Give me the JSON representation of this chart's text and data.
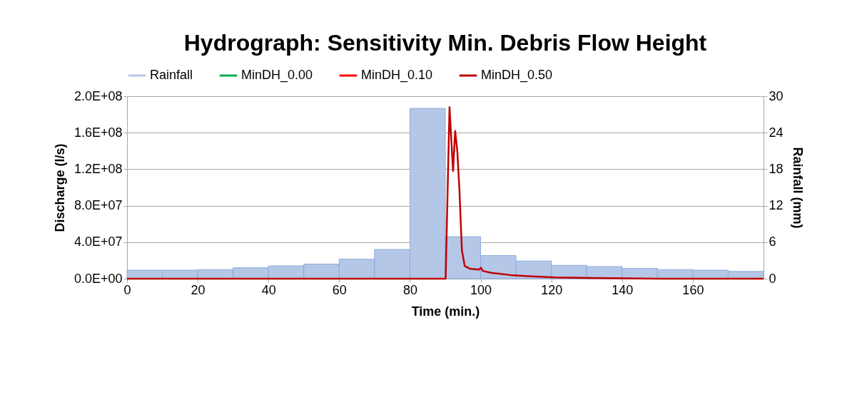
{
  "chart_data": {
    "type": "line",
    "title": "Hydrograph: Sensitivity Min. Debris Flow Height",
    "xlabel": "Time (min.)",
    "ylabel": "Discharge (l/s)",
    "y2label": "Rainfall (mm)",
    "series": [
      {
        "name": "Rainfall",
        "type": "bar",
        "axis": "y2",
        "color": "#b4c7e7",
        "x": [
          5,
          15,
          25,
          35,
          45,
          55,
          65,
          75,
          85,
          95,
          105,
          115,
          125,
          135,
          145,
          155,
          165,
          175
        ],
        "values": [
          1.4,
          1.4,
          1.5,
          1.8,
          2.1,
          2.4,
          3.2,
          4.8,
          28.0,
          6.9,
          3.8,
          2.9,
          2.2,
          2.0,
          1.7,
          1.5,
          1.4,
          1.2
        ]
      },
      {
        "name": "MinDH_0.00",
        "color": "#00b050"
      },
      {
        "name": "MinDH_0.10",
        "color": "#ff0000"
      },
      {
        "name": "MinDH_0.50",
        "color": "#c00000",
        "x": [
          0,
          90.1,
          91.2,
          92.2,
          92.8,
          93.4,
          94.0,
          94.7,
          95.5,
          96.9,
          99.6,
          100.1,
          100.6,
          103.0,
          108.4,
          114.4,
          121.2,
          131.3,
          150.1,
          180
        ],
        "values": [
          0,
          0,
          188000000,
          118000000,
          162000000,
          140000000,
          98000000,
          31000000,
          14000000,
          11000000,
          10000000,
          12000000,
          8500000,
          6500000,
          4000000,
          2600000,
          1300000,
          800000,
          0,
          0
        ]
      }
    ],
    "xlim": [
      0,
      180
    ],
    "xticks": [
      0,
      20,
      40,
      60,
      80,
      100,
      120,
      140,
      160
    ],
    "ylim": [
      0,
      200000000
    ],
    "yticks": [
      {
        "value": 0,
        "label": "0.0E+00"
      },
      {
        "value": 40000000,
        "label": "4.0E+07"
      },
      {
        "value": 80000000,
        "label": "8.0E+07"
      },
      {
        "value": 120000000,
        "label": "1.2E+08"
      },
      {
        "value": 160000000,
        "label": "1.6E+08"
      },
      {
        "value": 200000000,
        "label": "2.0E+08"
      }
    ],
    "y2lim": [
      0,
      30
    ],
    "y2ticks": [
      0,
      6,
      12,
      18,
      24,
      30
    ],
    "grid": "y",
    "legend": "top",
    "marker": "none",
    "line_style": "solid"
  }
}
